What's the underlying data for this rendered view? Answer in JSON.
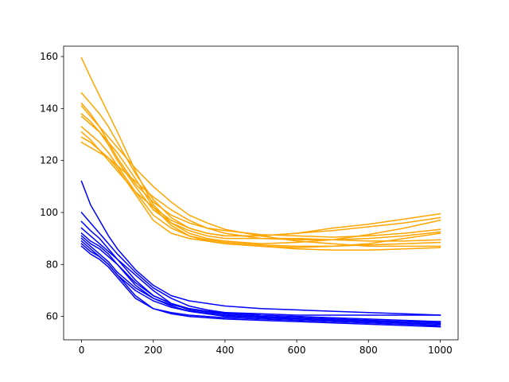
{
  "chart_data": {
    "type": "line",
    "title": "",
    "xlabel": "",
    "ylabel": "",
    "xlim": [
      -50,
      1050
    ],
    "ylim": [
      51,
      164
    ],
    "xticks": [
      0,
      200,
      400,
      600,
      800,
      1000
    ],
    "yticks": [
      60,
      80,
      100,
      120,
      140,
      160
    ],
    "xtick_labels": [
      "0",
      "200",
      "400",
      "600",
      "800",
      "1000"
    ],
    "ytick_labels": [
      "60",
      "80",
      "100",
      "120",
      "140",
      "160"
    ],
    "grid": false,
    "legend": "none",
    "colors": {
      "group_a": "#ffa500",
      "group_b": "#0000ff"
    },
    "x": [
      0,
      25,
      50,
      75,
      100,
      150,
      200,
      250,
      300,
      350,
      400,
      500,
      600,
      700,
      800,
      900,
      1000
    ],
    "series": [
      {
        "group": "group_a",
        "values": [
          159.5,
          152,
          145,
          138,
          131,
          116,
          103,
          96,
          92,
          90,
          89,
          88,
          88.5,
          89.5,
          91.5,
          94,
          97
        ]
      },
      {
        "group": "group_a",
        "values": [
          146,
          142,
          138,
          133,
          127,
          115,
          105,
          98,
          94,
          92,
          91,
          91,
          92,
          94,
          95.5,
          97.5,
          99.5
        ]
      },
      {
        "group": "group_a",
        "values": [
          142,
          138,
          133,
          127,
          121,
          111,
          104,
          99,
          96,
          94,
          93,
          91.5,
          91,
          90.5,
          91,
          92,
          93.5
        ]
      },
      {
        "group": "group_a",
        "values": [
          141,
          137,
          133,
          129,
          125,
          117,
          110,
          104,
          99,
          96,
          93.5,
          91,
          89,
          88,
          87,
          87,
          87
        ]
      },
      {
        "group": "group_a",
        "values": [
          138,
          135,
          131,
          126,
          120,
          110,
          101,
          96,
          93,
          91,
          90,
          90,
          90,
          89.5,
          89,
          89,
          89.5
        ]
      },
      {
        "group": "group_a",
        "values": [
          137,
          134,
          131,
          127,
          123,
          113,
          102,
          95,
          91,
          89,
          88,
          87,
          86,
          85.5,
          85.5,
          86,
          86.5
        ]
      },
      {
        "group": "group_a",
        "values": [
          133,
          130,
          127,
          123,
          118,
          108,
          99,
          94,
          91,
          89.5,
          88.5,
          87.5,
          87,
          87,
          87.5,
          88,
          88.5
        ]
      },
      {
        "group": "group_a",
        "values": [
          131,
          128,
          124,
          120,
          116,
          108,
          102,
          97,
          94,
          92,
          91,
          91,
          92,
          93,
          94.5,
          96,
          98
        ]
      },
      {
        "group": "group_a",
        "values": [
          129,
          127,
          124,
          121,
          117,
          107,
          97,
          92,
          90,
          89,
          88,
          87,
          86.5,
          87,
          88,
          90,
          92
        ]
      },
      {
        "group": "group_a",
        "values": [
          127,
          125,
          123,
          121,
          118,
          112,
          106,
          101,
          97,
          94,
          92,
          90,
          89.5,
          89.5,
          90,
          91,
          92.5
        ]
      },
      {
        "group": "group_b",
        "values": [
          112,
          103,
          97,
          91,
          86,
          78,
          72,
          68,
          66,
          65,
          64,
          63,
          62.5,
          62,
          61.5,
          61,
          60.5
        ]
      },
      {
        "group": "group_b",
        "values": [
          100,
          96,
          92,
          88,
          84,
          77,
          71,
          67,
          64,
          62.5,
          61.5,
          60.5,
          60,
          59.5,
          59,
          58.5,
          58
        ]
      },
      {
        "group": "group_b",
        "values": [
          96.5,
          93,
          90,
          86,
          82,
          74,
          68,
          65,
          63,
          62,
          61.5,
          61,
          60.5,
          60.5,
          60.5,
          60.5,
          60.5
        ]
      },
      {
        "group": "group_b",
        "values": [
          94,
          91,
          88,
          85,
          82,
          76,
          70,
          65,
          62.5,
          61,
          60,
          59.5,
          59,
          58.5,
          58,
          57.5,
          57
        ]
      },
      {
        "group": "group_b",
        "values": [
          92,
          89,
          87,
          84,
          80,
          72,
          67,
          64,
          62,
          61,
          60.5,
          59.5,
          59,
          58.5,
          58,
          57.5,
          56
        ]
      },
      {
        "group": "group_b",
        "values": [
          91,
          88,
          86,
          83,
          80,
          73,
          68,
          65,
          63,
          61.5,
          61,
          60,
          59.5,
          59,
          58.5,
          58,
          57.5
        ]
      },
      {
        "group": "group_b",
        "values": [
          90,
          87,
          84,
          81,
          77,
          71,
          67,
          64.5,
          63,
          62,
          61,
          60,
          59.5,
          59,
          58.5,
          58,
          58
        ]
      },
      {
        "group": "group_b",
        "values": [
          89,
          86,
          83,
          80,
          76,
          70,
          66,
          63.5,
          62,
          61,
          60.5,
          59.5,
          59,
          58.5,
          58,
          57.5,
          57
        ]
      },
      {
        "group": "group_b",
        "values": [
          88,
          85,
          83,
          80,
          76,
          68,
          63,
          61,
          60,
          59.5,
          59,
          58.5,
          58,
          57.5,
          57,
          56.5,
          56
        ]
      },
      {
        "group": "group_b",
        "values": [
          87,
          84,
          82,
          79,
          75,
          67,
          63,
          61.5,
          60.5,
          60,
          59.5,
          59,
          58.5,
          58,
          57.5,
          57,
          56.5
        ]
      }
    ]
  }
}
